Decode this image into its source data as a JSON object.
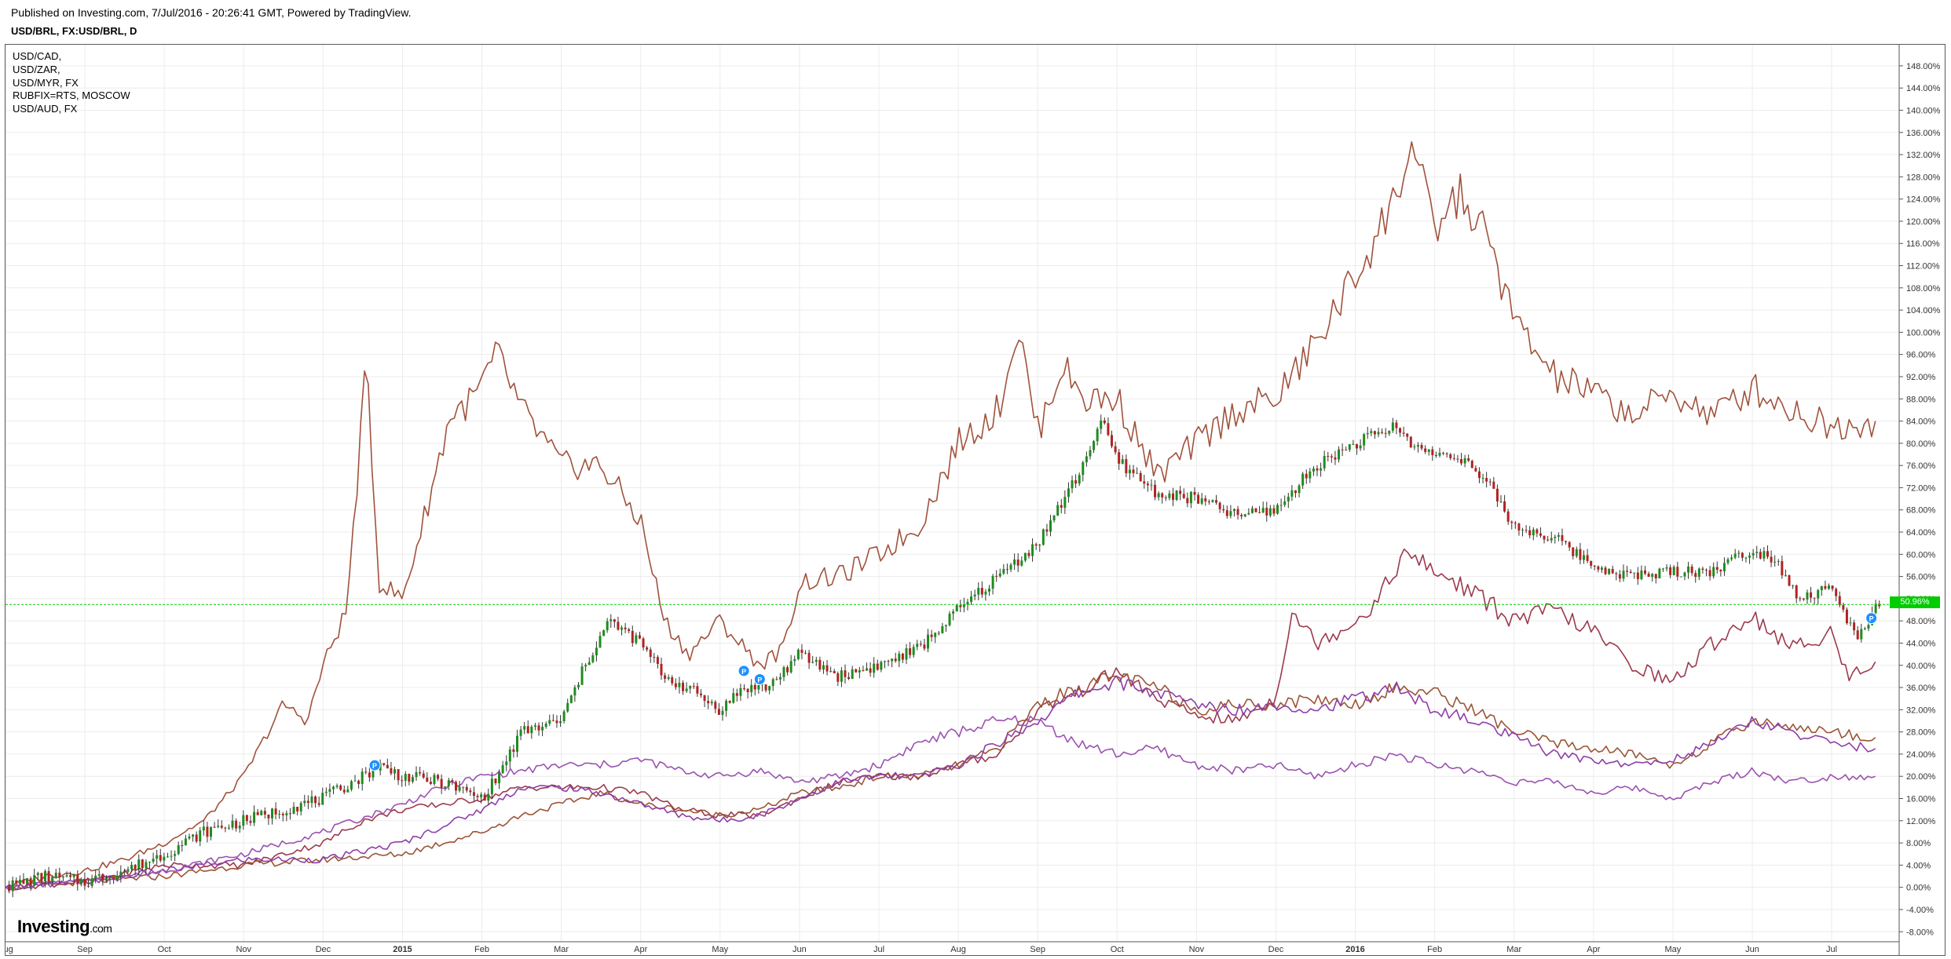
{
  "header": {
    "published": "Published on Investing.com, 7/Jul/2016 - 20:26:41 GMT, Powered by TradingView.",
    "symbol": "USD/BRL, FX:USD/BRL, D"
  },
  "legend": [
    "USD/CAD,",
    "USD/ZAR,",
    "USD/MYR, FX",
    "RUBFIX=RTS, MOSCOW",
    "USD/AUD, FX"
  ],
  "brand": {
    "name": "Investing",
    "suffix": ".com"
  },
  "colors": {
    "up": "#1e8c1e",
    "down": "#b22222",
    "line_brown": "#a0523c",
    "line_darkred": "#9c3a4c",
    "line_brown2": "#9a5537",
    "line_purple": "#8e3ea8",
    "line_violet": "#9b52b0",
    "last_price_line": "#00cc00",
    "grid": "#ececec",
    "marker": "#1e90ff"
  },
  "price_tag": "50.96%",
  "chart_data": {
    "type": "line",
    "title": "USD/BRL, FX:USD/BRL, D",
    "y_unit": "%",
    "ylim": [
      -9.8,
      151.8
    ],
    "y_ticks": [
      -8,
      -4,
      0,
      4,
      8,
      12,
      16,
      20,
      24,
      28,
      32,
      36,
      40,
      44,
      48,
      52,
      56,
      60,
      64,
      68,
      72,
      76,
      80,
      84,
      88,
      92,
      96,
      100,
      104,
      108,
      112,
      116,
      120,
      124,
      128,
      132,
      136,
      140,
      144,
      148
    ],
    "x_ticks": [
      "Aug",
      "Sep",
      "Oct",
      "Nov",
      "Dec",
      "2015",
      "Feb",
      "Mar",
      "Apr",
      "May",
      "Jun",
      "Jul",
      "Aug",
      "Sep",
      "Oct",
      "Nov",
      "Dec",
      "2016",
      "Feb",
      "Mar",
      "Apr",
      "May",
      "Jun",
      "Jul"
    ],
    "x_range": [
      0,
      23.85
    ],
    "grid": true,
    "legend_position": "top-left",
    "last_value": 50.96,
    "markers": [
      {
        "label": "P",
        "x": 4.65,
        "y": 22
      },
      {
        "label": "P",
        "x": 9.3,
        "y": 39
      },
      {
        "label": "P",
        "x": 9.5,
        "y": 37.5
      },
      {
        "label": "P",
        "x": 23.5,
        "y": 48.5
      }
    ],
    "candles": {
      "name": "USD/BRL",
      "anchors": [
        [
          0,
          0
        ],
        [
          0.5,
          2
        ],
        [
          1,
          1
        ],
        [
          1.5,
          3
        ],
        [
          2,
          6
        ],
        [
          2.5,
          10
        ],
        [
          3,
          12
        ],
        [
          3.5,
          14
        ],
        [
          4,
          16
        ],
        [
          4.5,
          20
        ],
        [
          4.7,
          22
        ],
        [
          5,
          20
        ],
        [
          5.5,
          19
        ],
        [
          6,
          16
        ],
        [
          6.2,
          20
        ],
        [
          6.5,
          28
        ],
        [
          7,
          30
        ],
        [
          7.3,
          40
        ],
        [
          7.6,
          48
        ],
        [
          8,
          44
        ],
        [
          8.3,
          38
        ],
        [
          8.7,
          35
        ],
        [
          9,
          32
        ],
        [
          9.3,
          36
        ],
        [
          9.6,
          36
        ],
        [
          10,
          42
        ],
        [
          10.5,
          38
        ],
        [
          11,
          40
        ],
        [
          11.5,
          43
        ],
        [
          12,
          50
        ],
        [
          12.5,
          56
        ],
        [
          13,
          62
        ],
        [
          13.5,
          74
        ],
        [
          13.8,
          84
        ],
        [
          14,
          77
        ],
        [
          14.5,
          71
        ],
        [
          15,
          70
        ],
        [
          15.5,
          67
        ],
        [
          16,
          68
        ],
        [
          16.5,
          76
        ],
        [
          17,
          80
        ],
        [
          17.5,
          83
        ],
        [
          17.8,
          79
        ],
        [
          18,
          78
        ],
        [
          18.3,
          78
        ],
        [
          18.7,
          72
        ],
        [
          19,
          65
        ],
        [
          19.5,
          63
        ],
        [
          20,
          58
        ],
        [
          20.5,
          56
        ],
        [
          21,
          57
        ],
        [
          21.5,
          57
        ],
        [
          22,
          61
        ],
        [
          22.3,
          59
        ],
        [
          22.6,
          52
        ],
        [
          23,
          54
        ],
        [
          23.3,
          45
        ],
        [
          23.6,
          51
        ]
      ]
    },
    "series": [
      {
        "name": "RUBFIX=RTS, MOSCOW",
        "color": "#a0523c",
        "anchors": [
          [
            0,
            0
          ],
          [
            0.5,
            2
          ],
          [
            1,
            3
          ],
          [
            1.5,
            5
          ],
          [
            2,
            8
          ],
          [
            2.5,
            12
          ],
          [
            3,
            20
          ],
          [
            3.5,
            33
          ],
          [
            3.8,
            30
          ],
          [
            4,
            40
          ],
          [
            4.3,
            50
          ],
          [
            4.55,
            95
          ],
          [
            4.7,
            55
          ],
          [
            5,
            52
          ],
          [
            5.3,
            68
          ],
          [
            5.6,
            85
          ],
          [
            5.9,
            88
          ],
          [
            6.2,
            96
          ],
          [
            6.5,
            86
          ],
          [
            7,
            76
          ],
          [
            7.5,
            76
          ],
          [
            8,
            66
          ],
          [
            8.3,
            48
          ],
          [
            8.6,
            42
          ],
          [
            9,
            48
          ],
          [
            9.5,
            40
          ],
          [
            9.8,
            43
          ],
          [
            10,
            55
          ],
          [
            10.5,
            56
          ],
          [
            11,
            60
          ],
          [
            11.5,
            65
          ],
          [
            12,
            80
          ],
          [
            12.5,
            86
          ],
          [
            12.75,
            101
          ],
          [
            13,
            82
          ],
          [
            13.3,
            94
          ],
          [
            13.6,
            88
          ],
          [
            14,
            88
          ],
          [
            14.5,
            74
          ],
          [
            15,
            80
          ],
          [
            15.5,
            86
          ],
          [
            16,
            88
          ],
          [
            16.5,
            98
          ],
          [
            17,
            110
          ],
          [
            17.5,
            124
          ],
          [
            17.7,
            134
          ],
          [
            18,
            118
          ],
          [
            18.3,
            125
          ],
          [
            18.7,
            116
          ],
          [
            19,
            102
          ],
          [
            19.5,
            92
          ],
          [
            20,
            89
          ],
          [
            20.5,
            85
          ],
          [
            21,
            89
          ],
          [
            21.5,
            85
          ],
          [
            22,
            90
          ],
          [
            22.5,
            86
          ],
          [
            23,
            83
          ],
          [
            23.5,
            84
          ]
        ]
      },
      {
        "name": "USD/ZAR,",
        "color": "#9c3a4c",
        "anchors": [
          [
            0,
            0
          ],
          [
            1,
            1
          ],
          [
            2,
            4
          ],
          [
            3,
            4
          ],
          [
            4,
            8
          ],
          [
            4.5,
            12
          ],
          [
            5,
            14
          ],
          [
            5.5,
            15
          ],
          [
            6,
            16
          ],
          [
            6.5,
            18
          ],
          [
            7,
            18
          ],
          [
            7.5,
            18
          ],
          [
            8,
            17
          ],
          [
            8.5,
            14
          ],
          [
            9,
            13
          ],
          [
            9.5,
            13
          ],
          [
            10,
            16
          ],
          [
            10.5,
            19
          ],
          [
            11,
            20
          ],
          [
            11.5,
            20
          ],
          [
            12,
            22
          ],
          [
            12.5,
            24
          ],
          [
            13,
            32
          ],
          [
            13.5,
            35
          ],
          [
            14,
            39
          ],
          [
            14.5,
            34
          ],
          [
            15,
            31
          ],
          [
            15.5,
            30
          ],
          [
            16,
            34
          ],
          [
            16.2,
            50
          ],
          [
            16.5,
            44
          ],
          [
            17,
            48
          ],
          [
            17.3,
            52
          ],
          [
            17.6,
            60
          ],
          [
            18,
            57
          ],
          [
            18.5,
            53
          ],
          [
            19,
            48
          ],
          [
            19.5,
            50
          ],
          [
            20,
            46
          ],
          [
            20.5,
            40
          ],
          [
            21,
            37
          ],
          [
            21.5,
            44
          ],
          [
            22,
            49
          ],
          [
            22.5,
            43
          ],
          [
            23,
            46
          ],
          [
            23.2,
            38
          ],
          [
            23.6,
            41
          ]
        ]
      },
      {
        "name": "USD/MYR, FX",
        "color": "#9a5537",
        "anchors": [
          [
            0,
            0
          ],
          [
            1,
            1
          ],
          [
            2,
            2
          ],
          [
            3,
            4
          ],
          [
            4,
            5
          ],
          [
            5,
            6
          ],
          [
            6,
            10
          ],
          [
            6.5,
            13
          ],
          [
            7,
            15
          ],
          [
            7.5,
            17
          ],
          [
            8,
            15
          ],
          [
            8.5,
            14
          ],
          [
            9,
            13
          ],
          [
            9.5,
            14
          ],
          [
            10,
            17
          ],
          [
            10.5,
            18
          ],
          [
            11,
            20
          ],
          [
            11.5,
            20
          ],
          [
            12,
            22
          ],
          [
            12.5,
            25
          ],
          [
            13,
            33
          ],
          [
            13.5,
            36
          ],
          [
            14,
            38
          ],
          [
            14.5,
            36
          ],
          [
            15,
            32
          ],
          [
            15.5,
            33
          ],
          [
            16,
            33
          ],
          [
            16.5,
            34
          ],
          [
            17,
            33
          ],
          [
            17.5,
            36
          ],
          [
            18,
            35
          ],
          [
            18.5,
            32
          ],
          [
            19,
            28
          ],
          [
            19.5,
            26
          ],
          [
            20,
            25
          ],
          [
            20.5,
            24
          ],
          [
            21,
            22
          ],
          [
            21.5,
            26
          ],
          [
            22,
            30
          ],
          [
            22.5,
            29
          ],
          [
            23,
            28
          ],
          [
            23.5,
            27
          ]
        ]
      },
      {
        "name": "USD/CAD,",
        "color": "#8e3ea8",
        "anchors": [
          [
            0,
            0
          ],
          [
            1,
            1
          ],
          [
            2,
            3
          ],
          [
            3,
            5
          ],
          [
            4,
            5
          ],
          [
            5,
            8
          ],
          [
            6,
            14
          ],
          [
            6.5,
            18
          ],
          [
            7,
            18
          ],
          [
            7.5,
            17
          ],
          [
            8,
            15
          ],
          [
            8.5,
            13
          ],
          [
            9,
            12
          ],
          [
            9.5,
            13
          ],
          [
            10,
            16
          ],
          [
            10.5,
            19
          ],
          [
            11,
            20
          ],
          [
            11.5,
            20
          ],
          [
            12,
            22
          ],
          [
            12.5,
            26
          ],
          [
            13,
            30
          ],
          [
            13.5,
            35
          ],
          [
            14,
            37
          ],
          [
            14.5,
            35
          ],
          [
            15,
            33
          ],
          [
            15.5,
            32
          ],
          [
            16,
            33
          ],
          [
            16.5,
            32
          ],
          [
            17,
            34
          ],
          [
            17.5,
            36
          ],
          [
            18,
            32
          ],
          [
            18.5,
            30
          ],
          [
            19,
            27
          ],
          [
            19.5,
            24
          ],
          [
            20,
            23
          ],
          [
            20.5,
            22
          ],
          [
            21,
            23
          ],
          [
            21.5,
            26
          ],
          [
            22,
            30
          ],
          [
            22.5,
            28
          ],
          [
            23,
            26
          ],
          [
            23.5,
            25
          ]
        ]
      },
      {
        "name": "USD/AUD, FX",
        "color": "#9b52b0",
        "anchors": [
          [
            0,
            0
          ],
          [
            1,
            1
          ],
          [
            2,
            3
          ],
          [
            3,
            6
          ],
          [
            4,
            10
          ],
          [
            5,
            15
          ],
          [
            5.5,
            18
          ],
          [
            6,
            20
          ],
          [
            7,
            22
          ],
          [
            7.5,
            22
          ],
          [
            8,
            23
          ],
          [
            8.5,
            21
          ],
          [
            9,
            20
          ],
          [
            9.5,
            21
          ],
          [
            10,
            19
          ],
          [
            10.5,
            20
          ],
          [
            11,
            22
          ],
          [
            11.5,
            26
          ],
          [
            12,
            28
          ],
          [
            12.5,
            30
          ],
          [
            13,
            30
          ],
          [
            13.5,
            26
          ],
          [
            14,
            24
          ],
          [
            14.5,
            25
          ],
          [
            15,
            22
          ],
          [
            15.5,
            21
          ],
          [
            16,
            22
          ],
          [
            16.5,
            20
          ],
          [
            17,
            22
          ],
          [
            17.5,
            24
          ],
          [
            18,
            22
          ],
          [
            18.5,
            21
          ],
          [
            19,
            19
          ],
          [
            19.5,
            19
          ],
          [
            20,
            17
          ],
          [
            20.5,
            18
          ],
          [
            21,
            16
          ],
          [
            21.5,
            19
          ],
          [
            22,
            21
          ],
          [
            22.5,
            19
          ],
          [
            23,
            20
          ],
          [
            23.5,
            20
          ]
        ]
      }
    ]
  }
}
